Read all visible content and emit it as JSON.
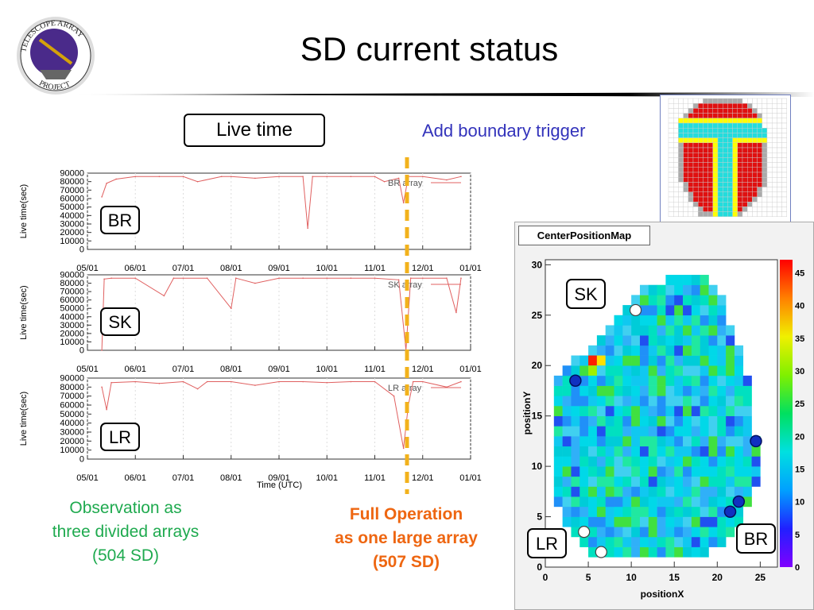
{
  "slide": {
    "title": "SD current status",
    "logo": {
      "text_top": "TELESCOPE ARRAY",
      "text_bottom": "PROJECT",
      "icon": "telescope-array-logo"
    },
    "live_time_box": "Live time",
    "boundary_note": "Add boundary trigger",
    "observation_note": [
      "Observation as",
      "three divided arrays",
      "(504 SD)"
    ],
    "full_operation_note": [
      "Full Operation",
      "as one large array",
      "(507 SD)"
    ],
    "colors": {
      "boundary_text": "#3333bb",
      "observation_text": "#1faa4f",
      "full_operation_text": "#ee6611",
      "dashed_line": "#f2b21c",
      "trace": "#e06060"
    }
  },
  "chart_data": [
    {
      "type": "line",
      "panel_label": "BR",
      "legend": "BR array",
      "ylabel": "Live time(sec)",
      "xlabel": "",
      "x_ticks": [
        "05/01",
        "06/01",
        "07/01",
        "08/01",
        "09/01",
        "10/01",
        "11/01",
        "12/01",
        "01/01"
      ],
      "y_ticks": [
        "0",
        "10000",
        "20000",
        "30000",
        "40000",
        "50000",
        "60000",
        "70000",
        "80000",
        "90000"
      ],
      "ylim": [
        0,
        90000
      ],
      "x": [
        5.3,
        5.4,
        5.6,
        6.0,
        6.5,
        7.0,
        7.3,
        7.8,
        8.0,
        8.5,
        9.0,
        9.5,
        9.6,
        9.7,
        10.0,
        10.5,
        11.0,
        11.2,
        11.5,
        11.6,
        11.7,
        12.0,
        12.5,
        12.8
      ],
      "values": [
        62000,
        78000,
        83000,
        86000,
        86000,
        86000,
        80000,
        86000,
        86000,
        84000,
        86000,
        86000,
        25000,
        86000,
        86000,
        86000,
        86000,
        80000,
        84000,
        55000,
        86000,
        86000,
        82000,
        86000
      ],
      "start": "05/01",
      "end": "01/01"
    },
    {
      "type": "line",
      "panel_label": "SK",
      "legend": "SK array",
      "ylabel": "Live time(sec)",
      "xlabel": "",
      "x_ticks": [
        "05/01",
        "06/01",
        "07/01",
        "08/01",
        "09/01",
        "10/01",
        "11/01",
        "12/01",
        "01/01"
      ],
      "y_ticks": [
        "0",
        "10000",
        "20000",
        "30000",
        "40000",
        "50000",
        "60000",
        "70000",
        "80000",
        "90000"
      ],
      "ylim": [
        0,
        90000
      ],
      "x": [
        5.3,
        5.35,
        5.5,
        6.0,
        6.6,
        6.8,
        7.0,
        7.5,
        8.0,
        8.1,
        8.5,
        9.0,
        9.5,
        10.0,
        10.5,
        11.0,
        11.5,
        11.65,
        11.75,
        12.0,
        12.5,
        12.7,
        12.8
      ],
      "values": [
        0,
        85000,
        86000,
        86000,
        65000,
        86000,
        86000,
        86000,
        50000,
        86000,
        80000,
        86000,
        86000,
        86000,
        86000,
        86000,
        84000,
        0,
        86000,
        86000,
        86000,
        45000,
        86000
      ],
      "start": "05/01",
      "end": "01/01"
    },
    {
      "type": "line",
      "panel_label": "LR",
      "legend": "LR array",
      "ylabel": "Live time(sec)",
      "xlabel": "Time (UTC)",
      "x_ticks": [
        "05/01",
        "06/01",
        "07/01",
        "08/01",
        "09/01",
        "10/01",
        "11/01",
        "12/01",
        "01/01"
      ],
      "y_ticks": [
        "0",
        "10000",
        "20000",
        "30000",
        "40000",
        "50000",
        "60000",
        "70000",
        "80000",
        "90000"
      ],
      "ylim": [
        0,
        90000
      ],
      "x": [
        5.3,
        5.4,
        5.5,
        6.0,
        6.5,
        7.0,
        7.3,
        7.5,
        8.0,
        8.5,
        9.0,
        9.5,
        10.0,
        10.5,
        11.0,
        11.4,
        11.6,
        11.7,
        11.8,
        12.0,
        12.5,
        12.8
      ],
      "values": [
        80000,
        55000,
        85000,
        86000,
        84000,
        86000,
        78000,
        86000,
        86000,
        82000,
        86000,
        86000,
        85000,
        86000,
        86000,
        70000,
        12000,
        60000,
        86000,
        86000,
        80000,
        86000
      ],
      "start": "05/01",
      "end": "01/01"
    },
    {
      "type": "heatmap",
      "title": "CenterPositionMap",
      "xlabel": "positionX",
      "ylabel": "positionY",
      "x_ticks": [
        "0",
        "5",
        "10",
        "15",
        "20",
        "25"
      ],
      "y_ticks": [
        "0",
        "5",
        "10",
        "15",
        "20",
        "25",
        "30"
      ],
      "xlim": [
        0,
        27
      ],
      "ylim": [
        0,
        30.5
      ],
      "color_scale_ticks": [
        "0",
        "5",
        "10",
        "15",
        "20",
        "25",
        "30",
        "35",
        "40",
        "45"
      ],
      "zlim": [
        0,
        47
      ],
      "region_labels": [
        "SK",
        "LR",
        "BR"
      ],
      "row_extents": [
        {
          "y": 1,
          "x0": 5,
          "x1": 18
        },
        {
          "y": 2,
          "x0": 4,
          "x1": 20
        },
        {
          "y": 3,
          "x0": 3,
          "x1": 21
        },
        {
          "y": 4,
          "x0": 2,
          "x1": 22
        },
        {
          "y": 5,
          "x0": 2,
          "x1": 22
        },
        {
          "y": 6,
          "x0": 1,
          "x1": 23
        },
        {
          "y": 7,
          "x0": 1,
          "x1": 23
        },
        {
          "y": 8,
          "x0": 1,
          "x1": 24
        },
        {
          "y": 9,
          "x0": 1,
          "x1": 24
        },
        {
          "y": 10,
          "x0": 1,
          "x1": 24
        },
        {
          "y": 11,
          "x0": 1,
          "x1": 24
        },
        {
          "y": 12,
          "x0": 1,
          "x1": 24
        },
        {
          "y": 13,
          "x0": 1,
          "x1": 23
        },
        {
          "y": 14,
          "x0": 1,
          "x1": 23
        },
        {
          "y": 15,
          "x0": 1,
          "x1": 23
        },
        {
          "y": 16,
          "x0": 1,
          "x1": 23
        },
        {
          "y": 17,
          "x0": 1,
          "x1": 23
        },
        {
          "y": 18,
          "x0": 1,
          "x1": 23
        },
        {
          "y": 19,
          "x0": 2,
          "x1": 22
        },
        {
          "y": 20,
          "x0": 3,
          "x1": 22
        },
        {
          "y": 21,
          "x0": 5,
          "x1": 22
        },
        {
          "y": 22,
          "x0": 6,
          "x1": 21
        },
        {
          "y": 23,
          "x0": 7,
          "x1": 21
        },
        {
          "y": 24,
          "x0": 8,
          "x1": 20
        },
        {
          "y": 25,
          "x0": 9,
          "x1": 20
        },
        {
          "y": 26,
          "x0": 10,
          "x1": 20
        },
        {
          "y": 27,
          "x0": 11,
          "x1": 19
        },
        {
          "y": 28,
          "x0": 14,
          "x1": 18
        }
      ],
      "hot_cells": [
        {
          "x": 5,
          "y": 20,
          "z": 45
        },
        {
          "x": 6,
          "y": 20,
          "z": 38
        },
        {
          "x": 5,
          "y": 19,
          "z": 30
        }
      ],
      "markers_filled": [
        {
          "x": 3.5,
          "y": 18.5
        },
        {
          "x": 24.5,
          "y": 12.5
        },
        {
          "x": 22.5,
          "y": 6.5
        },
        {
          "x": 21.5,
          "y": 5.5
        }
      ],
      "markers_open": [
        {
          "x": 10.5,
          "y": 25.5
        },
        {
          "x": 4.5,
          "y": 3.5
        },
        {
          "x": 6.5,
          "y": 1.5
        }
      ]
    },
    {
      "type": "heatmap",
      "title": "",
      "legend_colors": {
        "red": "#e01010",
        "cyan": "#22dddd",
        "yellow": "#ffff00",
        "gray": "#aaaaaa"
      }
    }
  ]
}
